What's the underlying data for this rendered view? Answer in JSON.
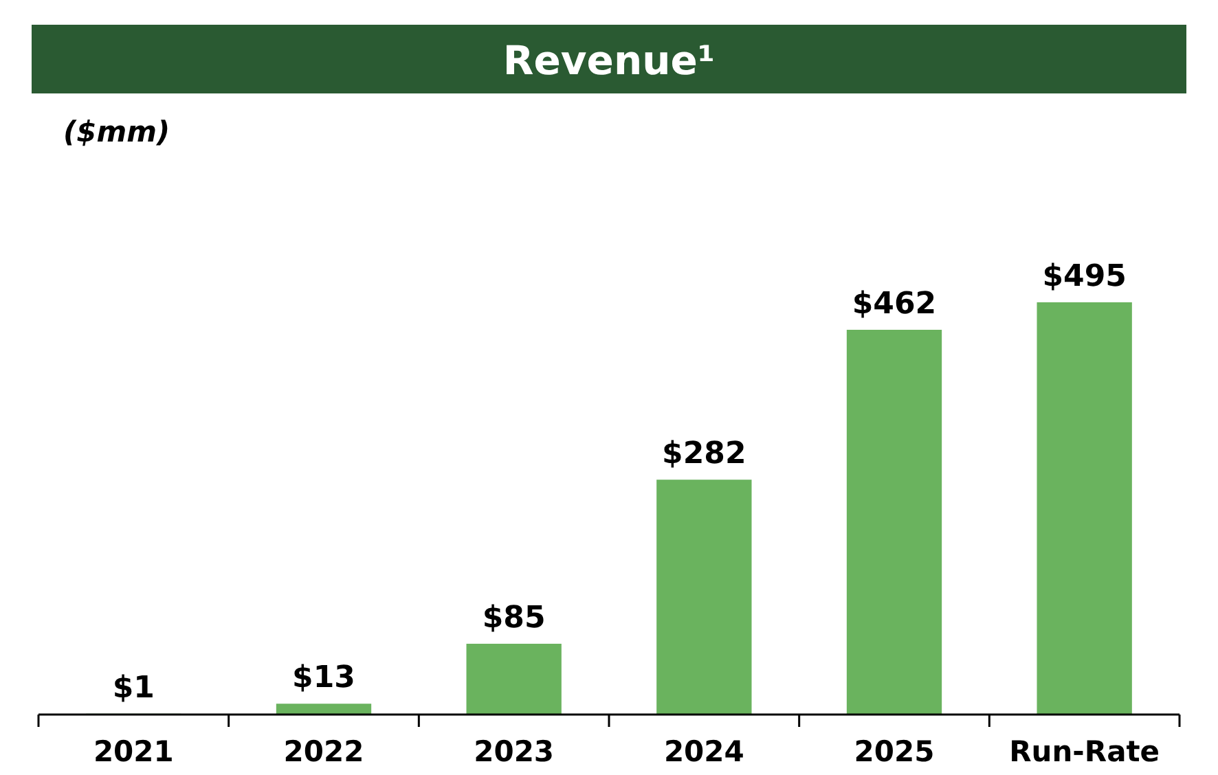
{
  "chart_data": {
    "type": "bar",
    "title": "Revenue¹",
    "subtitle": "($mm)",
    "categories": [
      "2021",
      "2022",
      "2023",
      "2024",
      "2025",
      "Run-Rate"
    ],
    "values": [
      1,
      13,
      85,
      282,
      462,
      495
    ],
    "value_labels": [
      "$1",
      "$13",
      "$85",
      "$282",
      "$462",
      "$495"
    ],
    "color": "#6ab35e"
  }
}
